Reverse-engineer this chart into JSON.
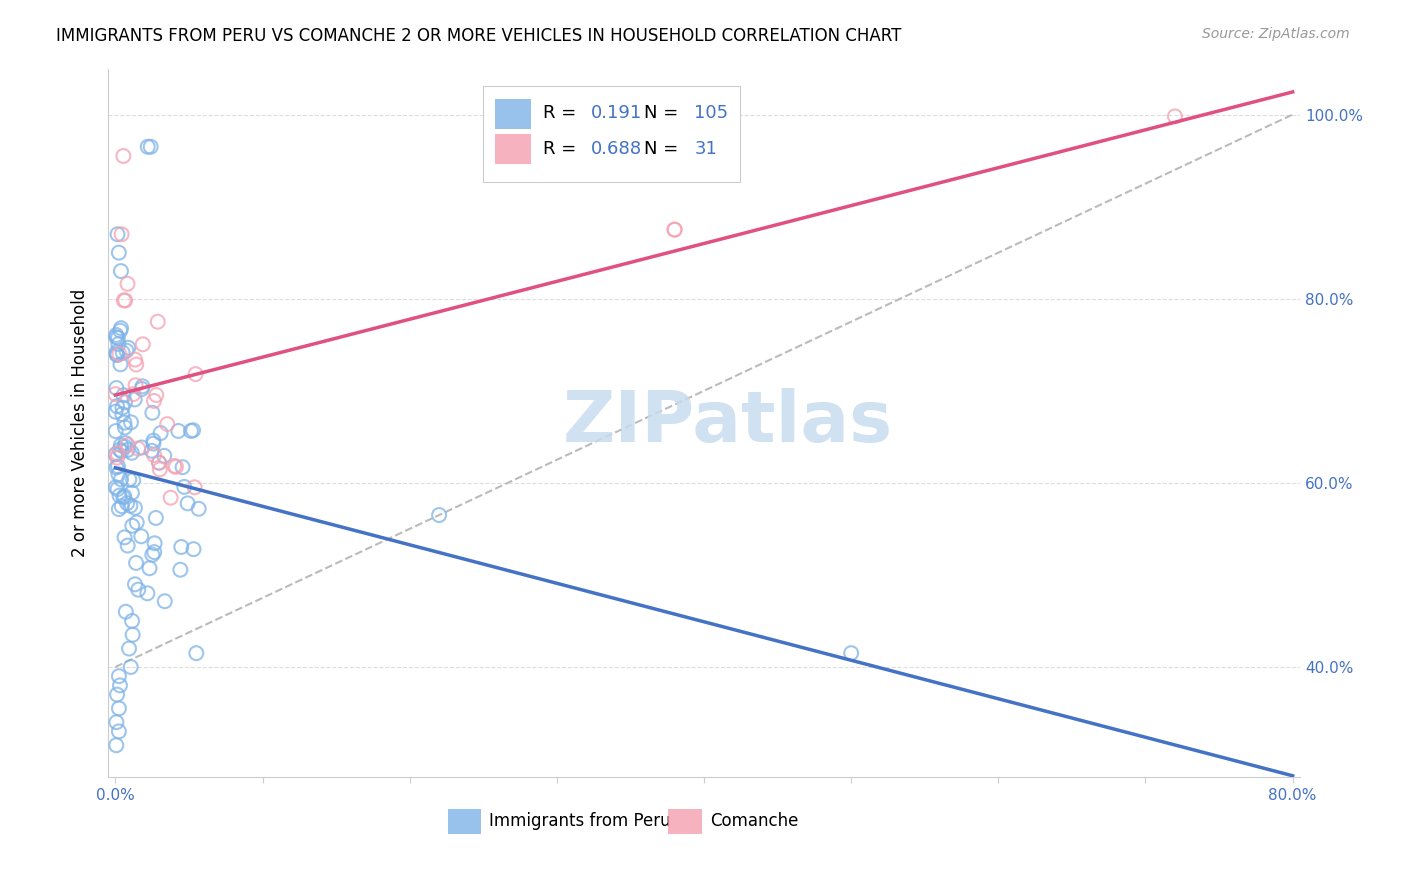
{
  "title": "IMMIGRANTS FROM PERU VS COMANCHE 2 OR MORE VEHICLES IN HOUSEHOLD CORRELATION CHART",
  "source": "Source: ZipAtlas.com",
  "ylabel": "2 or more Vehicles in Household",
  "xlabel_blue": "Immigrants from Peru",
  "xlabel_pink": "Comanche",
  "legend_blue_R": "0.191",
  "legend_blue_N": "105",
  "legend_pink_R": "0.688",
  "legend_pink_N": "31",
  "blue_color": "#7EB3E8",
  "pink_color": "#F4A0B0",
  "blue_line_color": "#4472C4",
  "pink_line_color": "#E05080",
  "dashed_line_color": "#BBBBBB",
  "watermark": "ZIPatlas",
  "tick_color": "#4472C4",
  "grid_color": "#DDDDDD",
  "title_fontsize": 12,
  "source_fontsize": 10,
  "tick_fontsize": 11,
  "ylabel_fontsize": 12,
  "legend_fontsize": 13,
  "watermark_fontsize": 52,
  "scatter_size": 100,
  "scatter_alpha": 0.75,
  "line_width": 2.5,
  "xlim": [
    -0.005,
    0.805
  ],
  "ylim": [
    0.28,
    1.05
  ],
  "xtick_vals": [
    0.0,
    0.1,
    0.2,
    0.3,
    0.4,
    0.5,
    0.6,
    0.7,
    0.8
  ],
  "xtick_labels": [
    "0.0%",
    "",
    "",
    "",
    "",
    "",
    "",
    "",
    "80.0%"
  ],
  "ytick_vals": [
    0.4,
    0.6,
    0.8,
    1.0
  ],
  "ytick_labels": [
    "40.0%",
    "60.0%",
    "80.0%",
    "100.0%"
  ]
}
